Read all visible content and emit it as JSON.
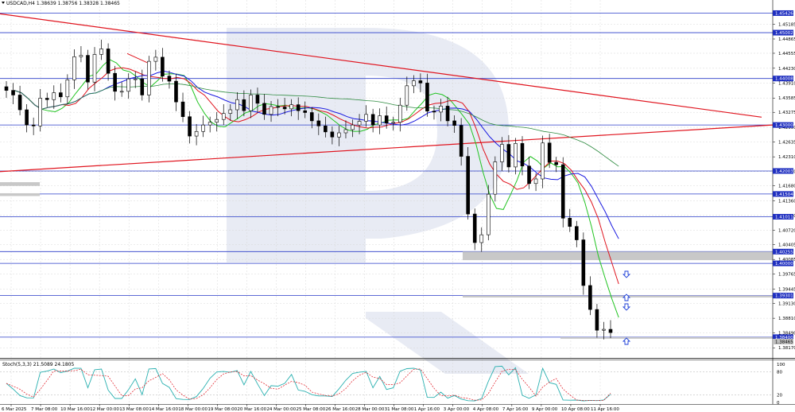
{
  "chart_data": [
    {
      "type": "candlestick",
      "title": "USDCAD,H4  1.38639 1.38756 1.38328 1.38465",
      "symbol": "USDCAD",
      "timeframe": "H4",
      "ohlc_header": [
        "1.38639",
        "1.38756",
        "1.38328",
        "1.38465"
      ],
      "current_price_label": "1.38465",
      "ylim": [
        1.3795,
        1.4571
      ],
      "price_ticks": [
        "1.45185",
        "1.44865",
        "1.44555",
        "1.44230",
        "1.43910",
        "1.43585",
        "1.43275",
        "1.42950",
        "1.42635",
        "1.42310",
        "1.41990",
        "1.41680",
        "1.41360",
        "1.41040",
        "1.40720",
        "1.40405",
        "1.40085",
        "1.39765",
        "1.39445",
        "1.39130",
        "1.38810",
        "1.38490",
        "1.38170"
      ],
      "horizontal_levels": [
        {
          "label": "1.45426",
          "value": 1.45426
        },
        {
          "label": "1.45002",
          "value": 1.45002
        },
        {
          "label": "1.44008",
          "value": 1.44008
        },
        {
          "label": "1.43000",
          "value": 1.43
        },
        {
          "label": "1.42003",
          "value": 1.42003
        },
        {
          "label": "1.41504",
          "value": 1.41504
        },
        {
          "label": "1.41011",
          "value": 1.41011
        },
        {
          "label": "1.40255",
          "value": 1.40255
        },
        {
          "label": "1.40000",
          "value": 1.4
        },
        {
          "label": "1.39301",
          "value": 1.39301
        },
        {
          "label": "1.38400",
          "value": 1.384
        }
      ],
      "time_labels": [
        "6 Mar 2025",
        "7 Mar 08:00",
        "10 Mar 16:00",
        "12 Mar 00:00",
        "13 Mar 08:00",
        "14 Mar 16:00",
        "18 Mar 00:00",
        "19 Mar 08:00",
        "20 Mar 16:00",
        "24 Mar 00:00",
        "25 Mar 08:00",
        "26 Mar 16:00",
        "28 Mar 00:00",
        "31 Mar 08:00",
        "1 Apr 16:00",
        "3 Apr 00:00",
        "4 Apr 08:00",
        "7 Apr 16:00",
        "9 Apr 00:00",
        "10 Apr 08:00",
        "11 Apr 16:00"
      ],
      "candles_close": [
        1.4375,
        1.4365,
        1.4333,
        1.43,
        1.4298,
        1.4358,
        1.4355,
        1.437,
        1.4361,
        1.4398,
        1.4448,
        1.4451,
        1.4393,
        1.4453,
        1.4465,
        1.4412,
        1.4373,
        1.4373,
        1.44,
        1.44,
        1.4365,
        1.4438,
        1.4447,
        1.4406,
        1.4395,
        1.435,
        1.4318,
        1.4276,
        1.4286,
        1.43,
        1.4306,
        1.4312,
        1.4325,
        1.4333,
        1.4355,
        1.4331,
        1.4365,
        1.4347,
        1.4323,
        1.434,
        1.4339,
        1.4335,
        1.4344,
        1.4331,
        1.4327,
        1.4309,
        1.4298,
        1.4285,
        1.4274,
        1.4283,
        1.429,
        1.43,
        1.4308,
        1.4323,
        1.43,
        1.432,
        1.4304,
        1.4306,
        1.4343,
        1.4385,
        1.4396,
        1.4391,
        1.433,
        1.4328,
        1.4341,
        1.4309,
        1.4299,
        1.4232,
        1.4107,
        1.4045,
        1.4062,
        1.415,
        1.422,
        1.4258,
        1.4209,
        1.426,
        1.4211,
        1.4173,
        1.4183,
        1.4261,
        1.4219,
        1.4214,
        1.4098,
        1.408,
        1.4051,
        1.3952,
        1.39,
        1.3855,
        1.3857,
        1.385
      ],
      "stochastic": {
        "label": "Stoch(5,3,3) 21.5089 24.1805",
        "k": 21.5089,
        "d": 24.1805,
        "ylim": [
          0,
          100
        ],
        "ticks": [
          "100",
          "80",
          "20",
          "0"
        ]
      }
    }
  ]
}
